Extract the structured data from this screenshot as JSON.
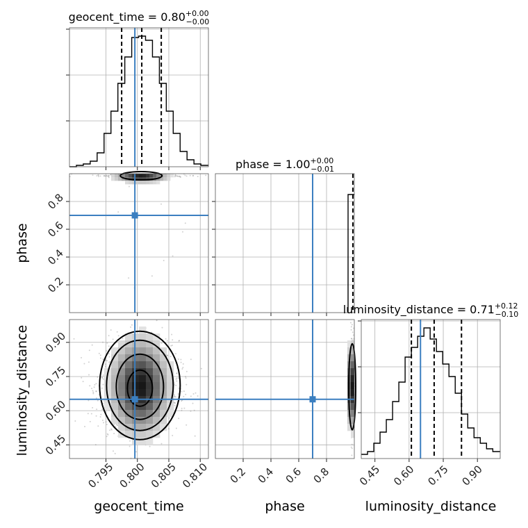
{
  "chart_data": {
    "type": "corner",
    "parameters": [
      "geocent_time",
      "phase",
      "luminosity_distance"
    ],
    "truths": {
      "geocent_time": 0.7996,
      "phase": 0.7,
      "luminosity_distance": 0.65
    },
    "colors": {
      "truth": "#3b7fc0",
      "hist": "#000000",
      "grid": "#b0b0b0"
    },
    "grid": true,
    "ranges": {
      "geocent_time": [
        0.7892,
        0.8113
      ],
      "phase": [
        0.0,
        1.0
      ],
      "luminosity_distance": [
        0.39,
        1.0
      ]
    },
    "titles": [
      {
        "text": "geocent_time = 0.80",
        "sup": "+0.00",
        "sub": "−0.00"
      },
      {
        "text": "phase = 1.00",
        "sup": "+0.00",
        "sub": "−0.01"
      },
      {
        "text": "luminosity_distance = 0.71",
        "sup": "+0.12",
        "sub": "−0.10"
      }
    ],
    "tick_labels": {
      "geocent_time": [
        "0.795",
        "0.800",
        "0.805",
        "0.810"
      ],
      "phase_x": [
        "0.2",
        "0.4",
        "0.6",
        "0.8"
      ],
      "phase_y": [
        "0.2",
        "0.4",
        "0.6",
        "0.8"
      ],
      "luminosity_distance": [
        "0.45",
        "0.60",
        "0.75",
        "0.90"
      ]
    },
    "axis_labels": {
      "x": [
        "geocent_time",
        "phase",
        "luminosity_distance"
      ],
      "y": [
        "phase",
        "luminosity_distance"
      ]
    },
    "histograms": {
      "geocent_time": {
        "bins": [
          0.7892,
          0.7903,
          0.7914,
          0.7925,
          0.7936,
          0.7947,
          0.7958,
          0.7969,
          0.798,
          0.7991,
          0.8002,
          0.8013,
          0.8024,
          0.8035,
          0.8046,
          0.8057,
          0.8068,
          0.8079,
          0.809,
          0.8101,
          0.8113
        ],
        "counts": [
          0,
          0.01,
          0.02,
          0.04,
          0.1,
          0.24,
          0.4,
          0.6,
          0.79,
          0.93,
          0.94,
          0.91,
          0.79,
          0.6,
          0.4,
          0.24,
          0.11,
          0.05,
          0.02,
          0.01
        ],
        "quantiles": [
          0.7975,
          0.8007,
          0.8038
        ]
      },
      "phase": {
        "bins": [
          0.98,
          0.99,
          1.0
        ],
        "counts": [
          0.85,
          0.85
        ],
        "quantiles": [
          0.993,
          0.998,
          1.0
        ]
      },
      "luminosity_distance": {
        "bins": [
          0.39,
          0.4175,
          0.445,
          0.4725,
          0.5,
          0.5275,
          0.555,
          0.5825,
          0.61,
          0.6375,
          0.665,
          0.6925,
          0.72,
          0.7475,
          0.775,
          0.8025,
          0.83,
          0.8575,
          0.885,
          0.9125,
          0.94,
          0.9675,
          1.0
        ],
        "counts": [
          0.03,
          0.05,
          0.11,
          0.19,
          0.28,
          0.41,
          0.55,
          0.73,
          0.8,
          0.88,
          0.94,
          0.86,
          0.77,
          0.68,
          0.59,
          0.47,
          0.32,
          0.22,
          0.15,
          0.11,
          0.07,
          0.05
        ],
        "quantiles": [
          0.61,
          0.71,
          0.83
        ]
      }
    }
  }
}
